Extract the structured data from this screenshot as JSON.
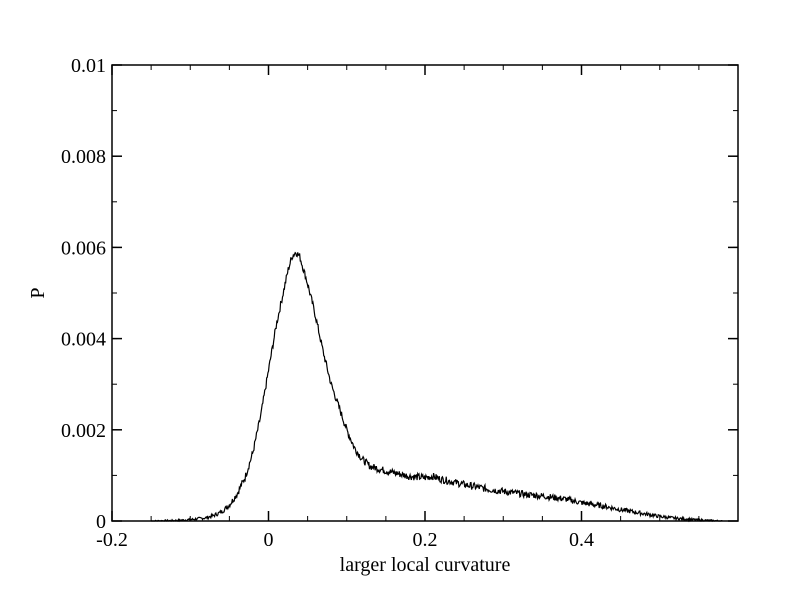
{
  "chart_data": {
    "type": "line",
    "title": "",
    "xlabel": "larger local curvature",
    "ylabel": "P",
    "xlim": [
      -0.2,
      0.6
    ],
    "ylim": [
      0,
      0.01
    ],
    "grid": false,
    "x_ticks": [
      -0.2,
      0,
      0.2,
      0.4
    ],
    "x_tick_labels": [
      "-0.2",
      "0",
      "0.2",
      "0.4"
    ],
    "y_ticks": [
      0,
      0.002,
      0.004,
      0.006,
      0.008,
      0.01
    ],
    "y_tick_labels": [
      "0",
      "0.002",
      "0.004",
      "0.006",
      "0.008",
      "0.01"
    ],
    "x_minor_step": 0.05,
    "y_minor_step": 0.001,
    "series": [
      {
        "color": "#000000",
        "noise_amplitude": 8e-05,
        "x": [
          -0.15,
          -0.12,
          -0.1,
          -0.08,
          -0.07,
          -0.06,
          -0.05,
          -0.04,
          -0.03,
          -0.02,
          -0.01,
          0.0,
          0.01,
          0.02,
          0.025,
          0.03,
          0.035,
          0.04,
          0.05,
          0.06,
          0.07,
          0.08,
          0.09,
          0.1,
          0.11,
          0.12,
          0.13,
          0.15,
          0.18,
          0.2,
          0.21,
          0.22,
          0.25,
          0.28,
          0.3,
          0.33,
          0.35,
          0.38,
          0.4,
          0.43,
          0.45,
          0.48,
          0.5,
          0.52,
          0.55,
          0.58
        ],
        "y": [
          0.0,
          1e-05,
          3e-05,
          7e-05,
          0.00012,
          0.0002,
          0.00035,
          0.0006,
          0.00095,
          0.0015,
          0.0023,
          0.0033,
          0.0043,
          0.0051,
          0.0055,
          0.0058,
          0.0059,
          0.0058,
          0.0052,
          0.0045,
          0.0037,
          0.003,
          0.0025,
          0.002,
          0.0016,
          0.00135,
          0.0012,
          0.0011,
          0.00098,
          0.00095,
          0.00098,
          0.00092,
          0.0008,
          0.0007,
          0.00065,
          0.00058,
          0.00055,
          0.00048,
          0.0004,
          0.00032,
          0.00025,
          0.00016,
          0.0001,
          6e-05,
          2e-05,
          0.0
        ]
      }
    ]
  }
}
